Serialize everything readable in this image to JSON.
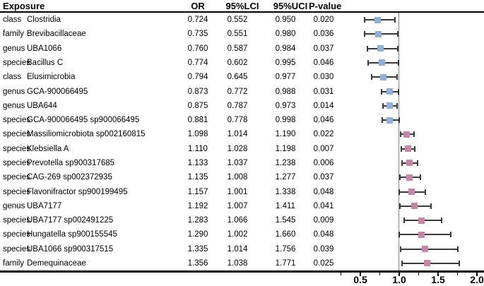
{
  "table": {
    "headers": {
      "exposure": "Exposure",
      "or": "OR",
      "lci": "95%LCI",
      "uci": "95%UCI",
      "p": "P-value"
    }
  },
  "chart_data": {
    "type": "forest",
    "title": "",
    "xlabel": "",
    "marker_shape": "square",
    "reference_line": 1.0,
    "x_axis": {
      "range_px_map": "px = 455 + 110 * value",
      "major_ticks": [
        0.5,
        1.0,
        1.5,
        2.0
      ],
      "tick_labels": [
        "0.5",
        "1.0",
        "1.5",
        "2.0"
      ],
      "minor_ticks": [
        0.25,
        0.75,
        1.25,
        1.75
      ]
    },
    "colors": {
      "protective_marker": "#92AFD7",
      "risk_marker": "#C684A6",
      "error_bar": "#3a3a3a",
      "reference_line": "#111111"
    },
    "rows": [
      {
        "level": "class",
        "name": "Clostridia",
        "or": 0.724,
        "lci": 0.552,
        "uci": 0.95,
        "p": 0.02
      },
      {
        "level": "family",
        "name": "Brevibacillaceae",
        "or": 0.735,
        "lci": 0.551,
        "uci": 0.98,
        "p": 0.036
      },
      {
        "level": "genus",
        "name": "UBA1066",
        "or": 0.76,
        "lci": 0.587,
        "uci": 0.984,
        "p": 0.037
      },
      {
        "level": "species",
        "name": "Bacillus C",
        "or": 0.774,
        "lci": 0.602,
        "uci": 0.995,
        "p": 0.046
      },
      {
        "level": "class",
        "name": "Elusimicrobia",
        "or": 0.794,
        "lci": 0.645,
        "uci": 0.977,
        "p": 0.03
      },
      {
        "level": "genus",
        "name": "GCA-900066495",
        "or": 0.873,
        "lci": 0.772,
        "uci": 0.988,
        "p": 0.031
      },
      {
        "level": "genus",
        "name": "UBA644",
        "or": 0.875,
        "lci": 0.787,
        "uci": 0.973,
        "p": 0.014
      },
      {
        "level": "species",
        "name": "GCA-900066495 sp900066495",
        "or": 0.881,
        "lci": 0.778,
        "uci": 0.998,
        "p": 0.046
      },
      {
        "level": "species",
        "name": "Massiliomicrobiota sp002160815",
        "or": 1.098,
        "lci": 1.014,
        "uci": 1.19,
        "p": 0.022
      },
      {
        "level": "species",
        "name": "Klebsiella A",
        "or": 1.11,
        "lci": 1.028,
        "uci": 1.198,
        "p": 0.007
      },
      {
        "level": "species",
        "name": "Prevotella sp900317685",
        "or": 1.133,
        "lci": 1.037,
        "uci": 1.238,
        "p": 0.006
      },
      {
        "level": "species",
        "name": "CAG-269 sp002372935",
        "or": 1.135,
        "lci": 1.008,
        "uci": 1.277,
        "p": 0.037
      },
      {
        "level": "species",
        "name": "Flavonifractor sp900199495",
        "or": 1.157,
        "lci": 1.001,
        "uci": 1.338,
        "p": 0.048
      },
      {
        "level": "genus",
        "name": "UBA7177",
        "or": 1.192,
        "lci": 1.007,
        "uci": 1.411,
        "p": 0.041
      },
      {
        "level": "species",
        "name": "UBA7177 sp002491225",
        "or": 1.283,
        "lci": 1.066,
        "uci": 1.545,
        "p": 0.009
      },
      {
        "level": "species",
        "name": "Hungatella sp900155545",
        "or": 1.29,
        "lci": 1.002,
        "uci": 1.66,
        "p": 0.048
      },
      {
        "level": "species",
        "name": "UBA1066 sp900317515",
        "or": 1.335,
        "lci": 1.014,
        "uci": 1.756,
        "p": 0.039
      },
      {
        "level": "family",
        "name": "Demequinaceae",
        "or": 1.356,
        "lci": 1.038,
        "uci": 1.771,
        "p": 0.025
      }
    ]
  }
}
